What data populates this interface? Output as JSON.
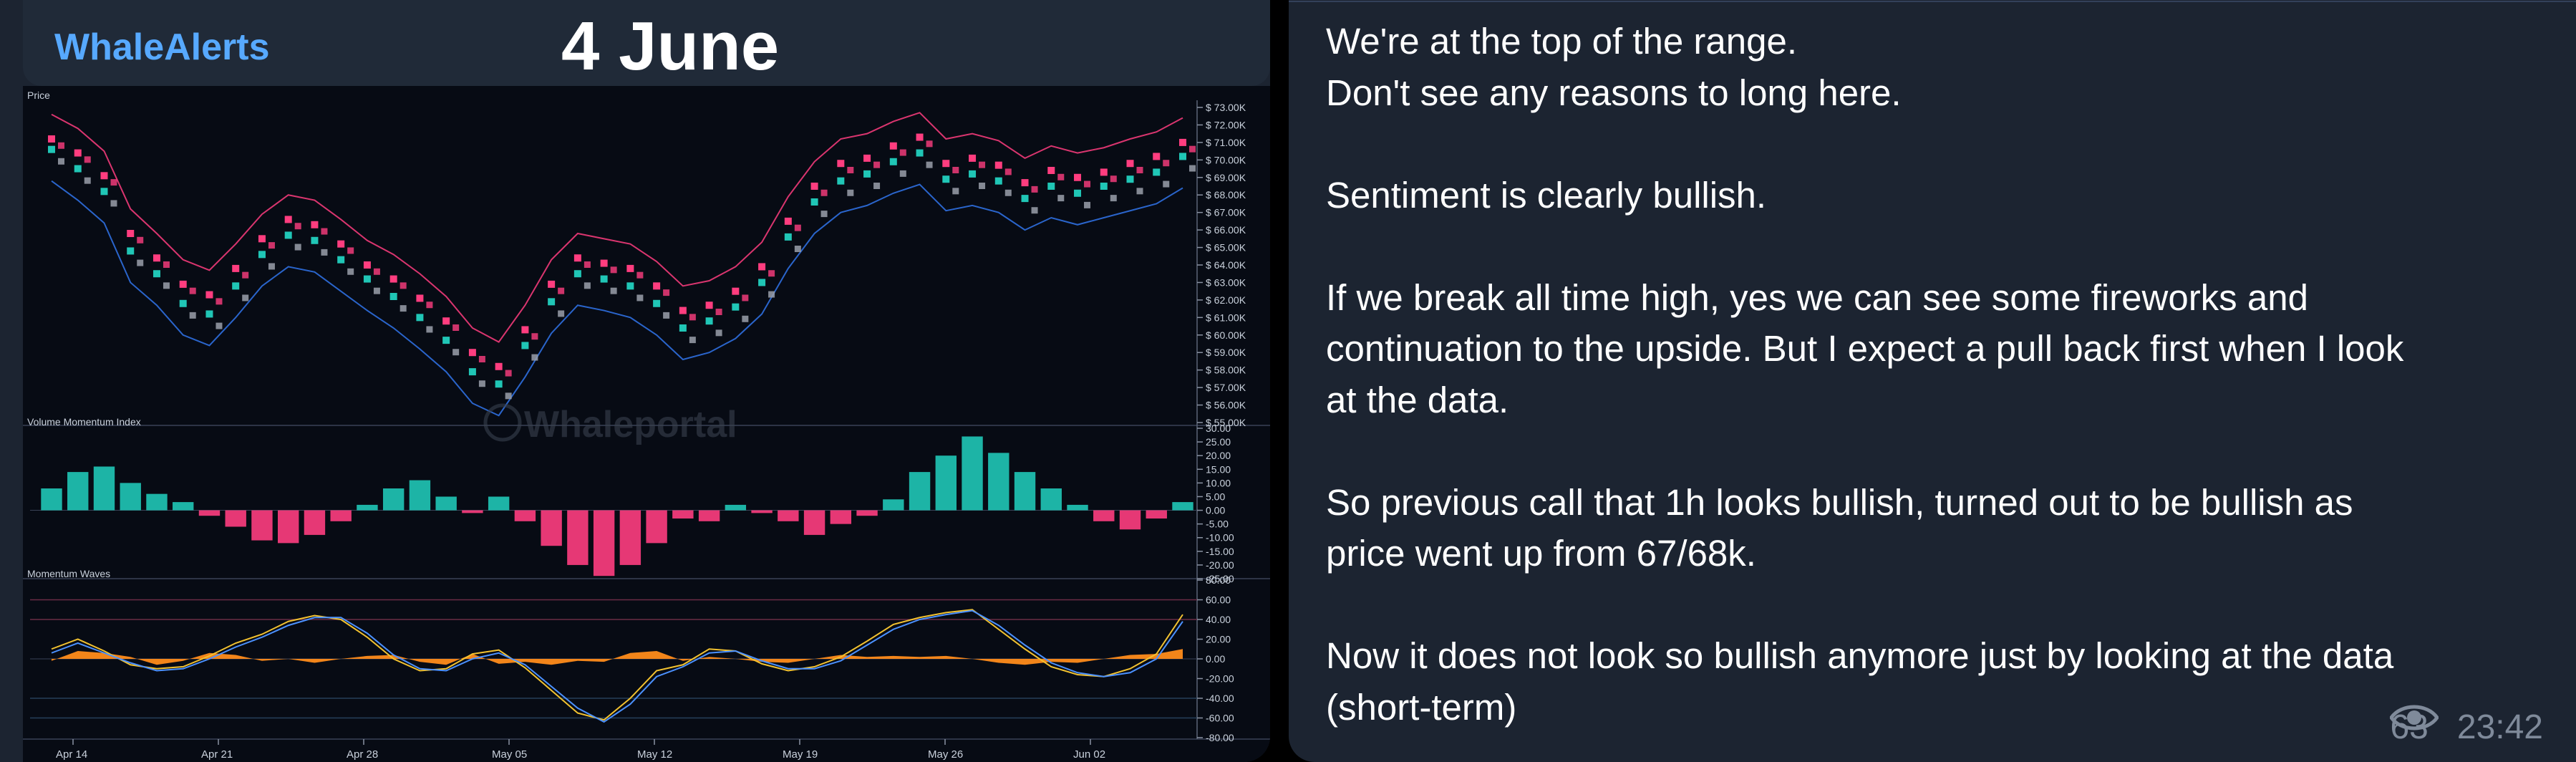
{
  "photo": {
    "brand": "WhaleAlerts",
    "date": "4 June",
    "watermark": "Whaleportal"
  },
  "chart_data": [
    {
      "type": "line",
      "title": "Price",
      "x_ticks": [
        "Apr 14",
        "Apr 21",
        "Apr 28",
        "May 05",
        "May 12",
        "May 19",
        "May 26",
        "Jun 02"
      ],
      "y_ticks": [
        "$ 73.00K",
        "$ 72.00K",
        "$ 71.00K",
        "$ 70.00K",
        "$ 69.00K",
        "$ 68.00K",
        "$ 67.00K",
        "$ 66.00K",
        "$ 65.00K",
        "$ 64.00K",
        "$ 63.00K",
        "$ 62.00K",
        "$ 61.00K",
        "$ 60.00K",
        "$ 59.00K",
        "$ 58.00K",
        "$ 57.00K",
        "$ 56.00K",
        "$ 55.00K"
      ],
      "ylim": [
        55000,
        73000
      ],
      "series": [
        {
          "color": "#ff3d7f",
          "values": [
            71200,
            70400,
            69100,
            65800,
            64400,
            62900,
            62300,
            63800,
            65500,
            66600,
            66300,
            65200,
            64000,
            63200,
            62100,
            60800,
            59000,
            58200,
            60300,
            62900,
            64400,
            64100,
            63800,
            62800,
            61400,
            61700,
            62500,
            63900,
            66500,
            68500,
            69800,
            70100,
            70800,
            71300,
            69800,
            70100,
            69700,
            68700,
            69400,
            69000,
            69300,
            69800,
            70200,
            71000
          ]
        },
        {
          "color": "#20c6b6",
          "values": [
            70600,
            69500,
            68200,
            64800,
            63500,
            61800,
            61200,
            62800,
            64600,
            65700,
            65400,
            64300,
            63200,
            62200,
            61000,
            59700,
            57900,
            57200,
            59400,
            61900,
            63500,
            63200,
            62800,
            61800,
            60400,
            60800,
            61600,
            63000,
            65600,
            67600,
            68800,
            69200,
            69900,
            70400,
            68900,
            69200,
            68800,
            67800,
            68500,
            68100,
            68500,
            68900,
            69300,
            70200
          ]
        }
      ]
    },
    {
      "type": "bar",
      "title": "Volume Momentum Index",
      "y_ticks": [
        "30.00",
        "25.00",
        "20.00",
        "15.00",
        "10.00",
        "5.00",
        "0.00",
        "-5.00",
        "-10.00",
        "-15.00",
        "-20.00",
        "-25.00"
      ],
      "ylim": [
        -25,
        30
      ],
      "values": [
        8,
        14,
        16,
        10,
        6,
        3,
        -2,
        -6,
        -11,
        -12,
        -9,
        -4,
        2,
        8,
        11,
        5,
        -1,
        5,
        -4,
        -13,
        -20,
        -24,
        -20,
        -12,
        -3,
        -4,
        2,
        -1,
        -4,
        -9,
        -5,
        -2,
        4,
        14,
        20,
        27,
        21,
        14,
        8,
        2,
        -4,
        -7,
        -3,
        3
      ]
    },
    {
      "type": "line",
      "title": "Momentum Waves",
      "y_ticks": [
        "80.00",
        "60.00",
        "40.00",
        "20.00",
        "0.00",
        "-20.00",
        "-40.00",
        "-60.00",
        "-80.00"
      ],
      "ylim": [
        -80,
        80
      ],
      "series": [
        {
          "color": "#f2c230",
          "values": [
            10,
            20,
            8,
            -6,
            -10,
            -8,
            3,
            16,
            25,
            38,
            44,
            40,
            22,
            0,
            -12,
            -10,
            5,
            9,
            -9,
            -32,
            -55,
            -62,
            -40,
            -12,
            -6,
            10,
            8,
            -5,
            -12,
            -8,
            2,
            18,
            35,
            42,
            47,
            50,
            30,
            10,
            -8,
            -16,
            -18,
            -10,
            5,
            45
          ]
        },
        {
          "color": "#4b91ff",
          "values": [
            6,
            16,
            6,
            -4,
            -12,
            -10,
            0,
            12,
            22,
            34,
            42,
            42,
            26,
            4,
            -10,
            -12,
            0,
            6,
            -6,
            -28,
            -50,
            -64,
            -46,
            -18,
            -8,
            6,
            8,
            -2,
            -10,
            -10,
            -2,
            14,
            30,
            40,
            45,
            49,
            34,
            14,
            -4,
            -14,
            -18,
            -14,
            0,
            38
          ]
        }
      ],
      "bars": [
        -2,
        8,
        6,
        2,
        -6,
        -2,
        6,
        4,
        -2,
        0,
        -4,
        0,
        3,
        4,
        -3,
        -6,
        5,
        -5,
        -3,
        -6,
        -2,
        -3,
        6,
        8,
        -2,
        2,
        0,
        -3,
        -4,
        0,
        4,
        2,
        3,
        2,
        3,
        0,
        -4,
        -6,
        -3,
        -4,
        0,
        4,
        5,
        10
      ]
    }
  ],
  "message": {
    "lines": [
      "We're at the top of the range.",
      "Don't see any reasons to long here.",
      "",
      "Sentiment is clearly bullish.",
      "",
      "If we break all time high, yes we can see some fireworks and",
      "continuation to the upside. But I expect a pull back first when I look",
      "at the data.",
      "",
      "So previous call that 1h looks bullish, turned out to be bullish as",
      "price went up from 67/68k.",
      "",
      "Now it does not look so bullish anymore just by looking at the data",
      "(short-term)"
    ],
    "views": "63",
    "time": "23:42"
  },
  "colors": {
    "bubble": "#1c2431",
    "bull": "#20c6b6",
    "bear": "#ff3d7f",
    "wave": "#ff8c1a",
    "meta": "#7f8a9a"
  },
  "icons": {
    "views": "eye-icon"
  }
}
